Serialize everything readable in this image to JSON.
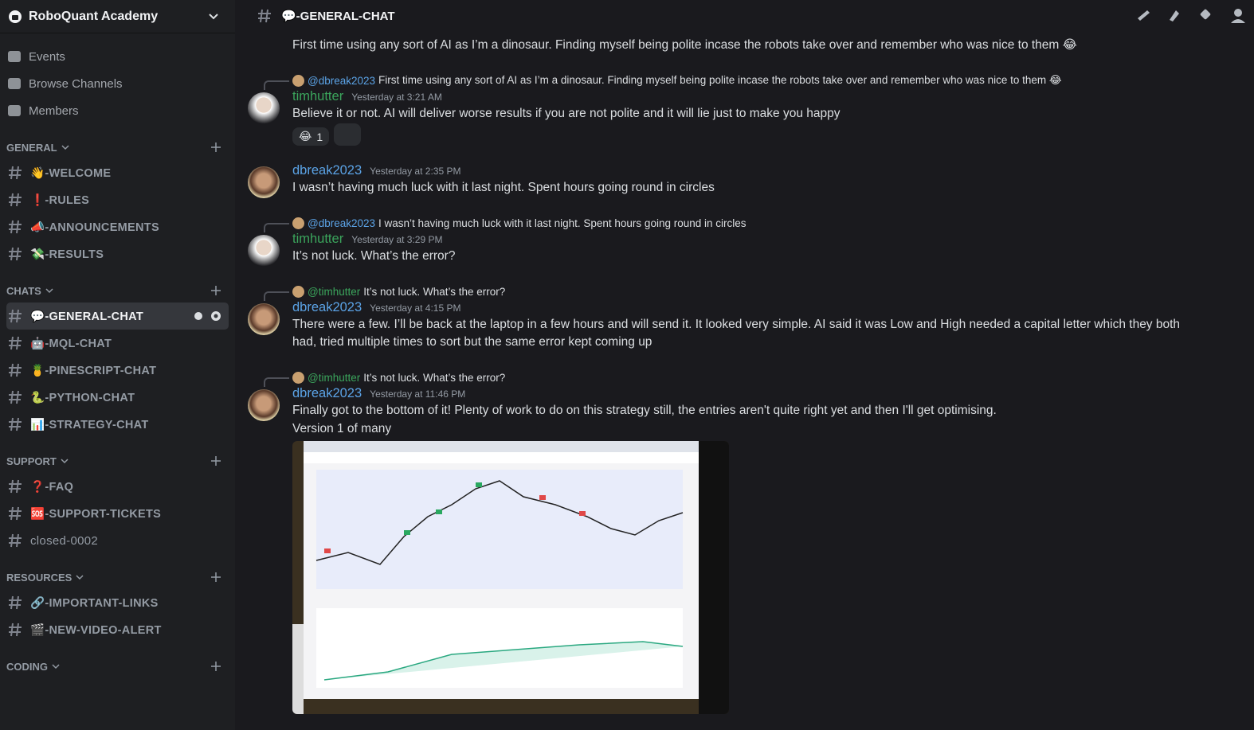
{
  "server": {
    "name": "RoboQuant Academy"
  },
  "nav": [
    "Events",
    "Browse Channels",
    "Members"
  ],
  "categories": [
    {
      "name": "GENERAL",
      "channels": [
        "👋-WELCOME",
        "❗-RULES",
        "📣-ANNOUNCEMENTS",
        "💸-RESULTS"
      ]
    },
    {
      "name": "CHATS",
      "channels": [
        "💬-GENERAL-CHAT",
        "🤖-MQL-CHAT",
        "🍍-PINESCRIPT-CHAT",
        "🐍-PYTHON-CHAT",
        "📊-STRATEGY-CHAT"
      ]
    },
    {
      "name": "SUPPORT",
      "channels": [
        "❓-FAQ",
        "🆘-SUPPORT-TICKETS",
        "closed-0002"
      ]
    },
    {
      "name": "RESOURCES",
      "channels": [
        "🔗-IMPORTANT-LINKS",
        "🎬-NEW-VIDEO-ALERT"
      ]
    },
    {
      "name": "CODING",
      "channels": []
    }
  ],
  "channel_header": {
    "name": "💬-GENERAL-CHAT"
  },
  "messages": [
    {
      "lines": [
        "First time using any sort of AI as I’m a dinosaur. Finding myself being polite incase the robots take over and remember who was nice to them 😂"
      ]
    },
    {
      "reply": {
        "author": "@dbreak2023",
        "text": "First time using any sort of AI as I’m a dinosaur. Finding myself being polite incase the robots take over and remember who was nice to them 😂"
      },
      "author": "timhutter",
      "timestamp": "Yesterday at 3:21 AM",
      "lines": [
        "Believe it or not. AI will deliver worse results if you are not polite and it will lie just to make you happy"
      ],
      "reactions": [
        {
          "emoji": "😂",
          "count": 1
        }
      ]
    },
    {
      "author": "dbreak2023",
      "timestamp": "Yesterday at 2:35 PM",
      "lines": [
        "I wasn’t having much luck with it last night. Spent hours going round in circles"
      ]
    },
    {
      "reply": {
        "author": "@dbreak2023",
        "text": "I wasn’t having much luck with it last night. Spent hours going round in circles"
      },
      "author": "timhutter",
      "timestamp": "Yesterday at 3:29 PM",
      "lines": [
        "It’s not luck. What’s the error?"
      ]
    },
    {
      "reply": {
        "author": "@timhutter",
        "text": "It’s not luck. What’s the error?"
      },
      "author": "dbreak2023",
      "timestamp": "Yesterday at 4:15 PM",
      "lines": [
        "There were a few. I’ll be back at the laptop in a few hours and will send it. It looked very simple. AI said it was Low and High needed a capital letter which they both had, tried multiple times to sort but the same error kept coming up"
      ]
    },
    {
      "reply": {
        "author": "@timhutter",
        "text": "It’s not luck. What’s the error?"
      },
      "author": "dbreak2023",
      "timestamp": "Yesterday at 11:46 PM",
      "lines": [
        "Finally got to the bottom of it! Plenty of work to do on this strategy still, the entries aren't quite right yet and then I'll get optimising.",
        "Version 1 of many"
      ],
      "attachment": true
    }
  ]
}
